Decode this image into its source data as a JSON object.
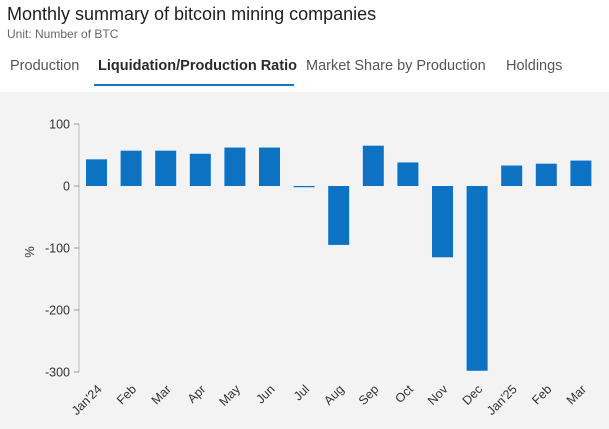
{
  "header": {
    "title": "Monthly summary of bitcoin mining companies",
    "subtitle": "Unit: Number of BTC"
  },
  "tabs": [
    {
      "label": "Production",
      "active": false
    },
    {
      "label": "Liquidation/Production Ratio",
      "active": true
    },
    {
      "label": "Market Share by Production",
      "active": false
    },
    {
      "label": "Holdings",
      "active": false
    }
  ],
  "colors": {
    "bar": "#0e72c2",
    "tab_accent": "#1a73c4",
    "plot_bg": "#f3f3f3"
  },
  "chart_data": {
    "type": "bar",
    "title": "",
    "xlabel": "",
    "ylabel": "%",
    "ylim": [
      -300,
      100
    ],
    "yticks": [
      100,
      0,
      -100,
      -200,
      -300
    ],
    "grid": false,
    "categories": [
      "Jan'24",
      "Feb",
      "Mar",
      "Apr",
      "May",
      "Jun",
      "Jul",
      "Aug",
      "Sep",
      "Oct",
      "Nov",
      "Dec",
      "Jan'25",
      "Feb",
      "Mar"
    ],
    "values": [
      43,
      57,
      57,
      52,
      62,
      62,
      -2,
      -95,
      65,
      38,
      -115,
      -298,
      33,
      36,
      41
    ]
  }
}
